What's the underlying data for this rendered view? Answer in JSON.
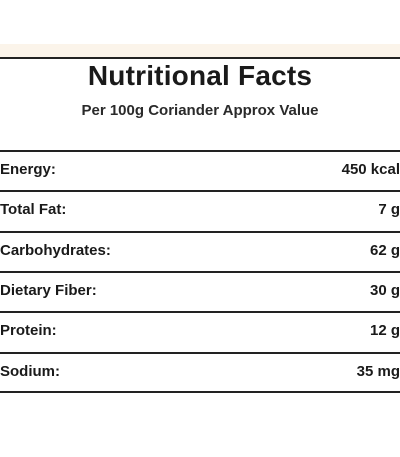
{
  "header": {
    "title": "Nutritional Facts",
    "subtitle": "Per 100g Coriander Approx Value"
  },
  "table": {
    "rows": [
      [
        "Energy:",
        "450 kcal"
      ],
      [
        "Total Fat:",
        "7 g"
      ],
      [
        "Carbohydrates:",
        "62 g"
      ],
      [
        "Dietary Fiber:",
        "30 g"
      ],
      [
        "Protein:",
        "12 g"
      ],
      [
        "Sodium:",
        "35 mg"
      ]
    ]
  }
}
